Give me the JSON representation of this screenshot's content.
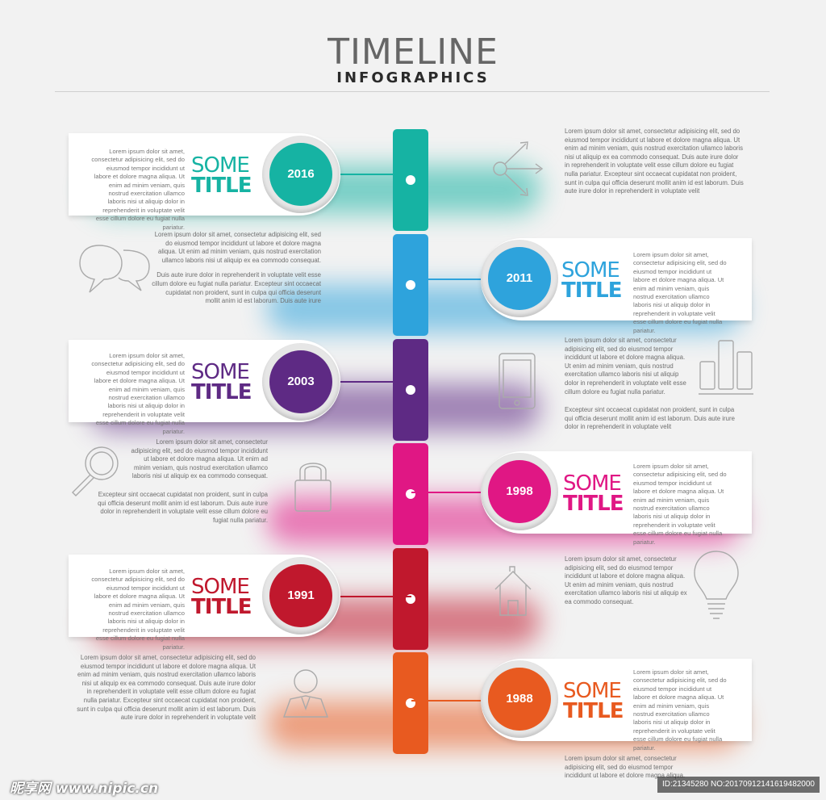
{
  "header": {
    "title": "TIMELINE",
    "subtitle": "INFOGRAPHICS"
  },
  "colors": {
    "teal": "#16b3a3",
    "blue": "#2ea3dc",
    "purple": "#5e2a84",
    "pink": "#e01784",
    "red": "#c0182d",
    "orange": "#e85a20"
  },
  "card_title": {
    "some": "SOME",
    "title": "TITLE"
  },
  "entries": [
    {
      "year": "2016",
      "card_text": "Lorem ipsum dolor sit amet, consectetur adipisicing elit, sed do eiusmod tempor incididunt ut labore et dolore magna aliqua. Ut enim ad minim veniam, quis nostrud exercitation ullamco laboris nisi ut aliquip dolor in reprehenderit in voluptate velit esse cillum dolore eu fugiat nulla pariatur.",
      "para": [
        "Lorem ipsum dolor sit amet, consectetur adipisicing elit, sed do eiusmod tempor incididunt ut labore et dolore magna aliqua. Ut enim ad minim veniam, quis nostrud exercitation ullamco laboris nisi ut aliquip ex ea commodo consequat. Duis aute irure dolor in reprehenderit in voluptate velit esse cillum dolore eu fugiat nulla pariatur. Excepteur sint occaecat cupidatat non proident, sunt in culpa qui officia deserunt mollit anim id est laborum. Duis aute irure dolor in reprehenderit in voluptate velit"
      ],
      "icon": "share-icon"
    },
    {
      "year": "2011",
      "card_text": "Lorem ipsum dolor sit amet, consectetur adipisicing elit, sed do eiusmod tempor incididunt ut labore et dolore magna aliqua. Ut enim ad minim veniam, quis nostrud exercitation ullamco laboris nisi ut aliquip dolor in reprehenderit in voluptate velit esse cillum dolore eu fugiat nulla pariatur.",
      "para": [
        "Lorem ipsum dolor sit amet, consectetur adipisicing elit, sed do eiusmod tempor incididunt ut labore et dolore magna aliqua. Ut enim ad minim veniam, quis nostrud exercitation ullamco laboris nisi ut aliquip ex ea commodo consequat.",
        "Duis aute irure dolor in reprehenderit in voluptate velit esse cillum dolore eu fugiat nulla pariatur. Excepteur sint occaecat cupidatat non proident, sunt in culpa qui officia deserunt mollit anim id est laborum. Duis aute irure"
      ],
      "icon": "chat-bubbles-icon"
    },
    {
      "year": "2003",
      "card_text": "Lorem ipsum dolor sit amet, consectetur adipisicing elit, sed do eiusmod tempor incididunt ut labore et dolore magna aliqua. Ut enim ad minim veniam, quis nostrud exercitation ullamco laboris nisi ut aliquip dolor in reprehenderit in voluptate velit esse cillum dolore eu fugiat nulla pariatur.",
      "para": [
        "Lorem ipsum dolor sit amet, consectetur adipisicing elit, sed do eiusmod tempor incididunt ut labore et dolore magna aliqua. Ut enim ad minim veniam, quis nostrud exercitation ullamco laboris nisi ut aliquip dolor in reprehenderit in voluptate velit esse cillum dolore eu fugiat nulla pariatur.",
        "Excepteur sint occaecat cupidatat non proident, sunt in culpa qui officia deserunt mollit anim id est laborum. Duis aute irure dolor in reprehenderit in voluptate velit"
      ],
      "icon": "tablet-icon",
      "icon2": "bar-chart-icon"
    },
    {
      "year": "1998",
      "card_text": "Lorem ipsum dolor sit amet, consectetur adipisicing elit, sed do eiusmod tempor incididunt ut labore et dolore magna aliqua. Ut enim ad minim veniam, quis nostrud exercitation ullamco laboris nisi ut aliquip dolor in reprehenderit in voluptate velit esse cillum dolore eu fugiat nulla pariatur.",
      "para": [
        "Lorem ipsum dolor sit amet, consectetur adipisicing elit, sed do eiusmod tempor incididunt ut labore et dolore magna aliqua. Ut enim ad minim veniam, quis nostrud exercitation ullamco laboris nisi ut aliquip ex ea commodo consequat.",
        "Excepteur sint occaecat cupidatat non proident, sunt in culpa qui officia deserunt mollit anim id est laborum. Duis aute irure dolor in reprehenderit in voluptate velit esse cillum dolore eu fugiat nulla pariatur."
      ],
      "icon": "magnifier-icon",
      "icon2": "padlock-icon"
    },
    {
      "year": "1991",
      "card_text": "Lorem ipsum dolor sit amet, consectetur adipisicing elit, sed do eiusmod tempor incididunt ut labore et dolore magna aliqua. Ut enim ad minim veniam, quis nostrud exercitation ullamco laboris nisi ut aliquip dolor in reprehenderit in voluptate velit esse cillum dolore eu fugiat nulla pariatur.",
      "para": [
        "Lorem ipsum dolor sit amet, consectetur adipisicing elit, sed do eiusmod tempor incididunt ut labore et dolore magna aliqua. Ut enim ad minim veniam, quis nostrud exercitation ullamco laboris nisi ut aliquip ex ea commodo consequat."
      ],
      "icon": "house-icon",
      "icon2": "lightbulb-icon"
    },
    {
      "year": "1988",
      "card_text": "Lorem ipsum dolor sit amet, consectetur adipisicing elit, sed do eiusmod tempor incididunt ut labore et dolore magna aliqua. Ut enim ad minim veniam, quis nostrud exercitation ullamco laboris nisi ut aliquip dolor in reprehenderit in voluptate velit esse cillum dolore eu fugiat nulla pariatur.",
      "para": [
        "Lorem ipsum dolor sit amet, consectetur adipisicing elit, sed do eiusmod tempor incididunt ut labore et dolore magna aliqua. Ut enim ad minim veniam, quis nostrud exercitation ullamco laboris nisi ut aliquip ex ea commodo consequat. Duis aute irure dolor in reprehenderit in voluptate velit esse cillum dolore eu fugiat nulla pariatur. Excepteur sint occaecat cupidatat non proident, sunt in culpa qui officia deserunt mollit anim id est laborum. Duis aute irure dolor in reprehenderit in voluptate velit"
      ],
      "icon": "user-icon"
    }
  ],
  "bottom_para": "Lorem ipsum dolor sit amet, consectetur adipisicing elit, sed do eiusmod tempor incididunt ut labore et dolore magna aliqua.",
  "watermark": {
    "left": "昵享网 www.nipic.cn",
    "right": "ID:21345280 NO:20170912141619482000"
  }
}
